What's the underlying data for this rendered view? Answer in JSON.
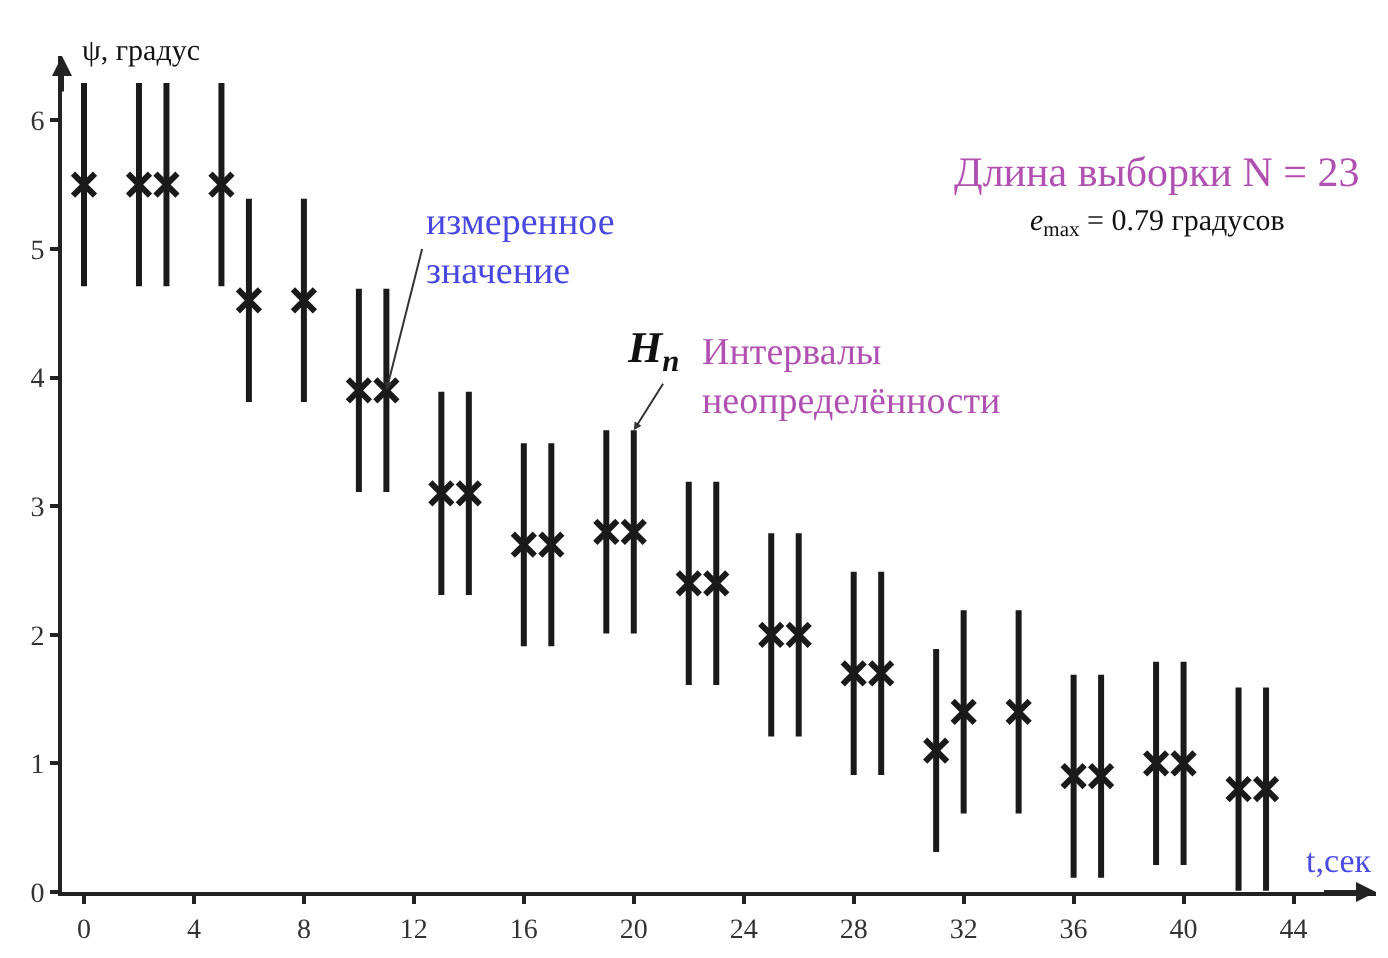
{
  "chart_data": {
    "type": "scatter",
    "xlabel": "t,сек",
    "ylabel": "ψ, градус",
    "x": [
      0,
      2,
      3,
      5,
      6,
      8,
      10,
      11,
      13,
      14,
      16,
      17,
      19,
      20,
      22,
      23,
      25,
      26,
      28,
      29,
      31,
      32,
      34,
      36,
      37,
      39,
      40,
      42,
      43
    ],
    "series": [
      {
        "color": "#1a1a1a",
        "values": [
          5.5,
          5.5,
          5.5,
          5.5,
          4.6,
          4.6,
          3.9,
          3.9,
          3.1,
          3.1,
          2.7,
          2.7,
          2.8,
          2.8,
          2.4,
          2.4,
          2.0,
          2.0,
          1.7,
          1.7,
          1.1,
          1.4,
          1.4,
          0.9,
          0.9,
          1.0,
          1.0,
          0.8,
          0.8
        ],
        "errors": [
          0.79,
          0.79,
          0.79,
          0.79,
          0.79,
          0.79,
          0.79,
          0.79,
          0.79,
          0.79,
          0.79,
          0.79,
          0.79,
          0.79,
          0.79,
          0.79,
          0.79,
          0.79,
          0.79,
          0.79,
          0.79,
          0.79,
          0.79,
          0.79,
          0.79,
          0.79,
          0.79,
          0.79,
          0.79
        ]
      }
    ],
    "xlim": [
      -0.8,
      47
    ],
    "ylim": [
      0,
      6.5
    ],
    "xticks": [
      0,
      4,
      8,
      12,
      16,
      20,
      24,
      28,
      32,
      36,
      40,
      44
    ],
    "yticks": [
      0,
      1,
      2,
      3,
      4,
      5,
      6
    ],
    "marker": "cross",
    "annotations": [
      {
        "text": "измеренное значение",
        "x": 11,
        "y": 3.9
      },
      {
        "text": "H$_{n}$",
        "x": 20,
        "y": 3.59
      },
      "Интервалы неопределённости",
      "Длина выборки N = 23",
      "e$_{max}$ = 0.79 градусов"
    ]
  }
}
